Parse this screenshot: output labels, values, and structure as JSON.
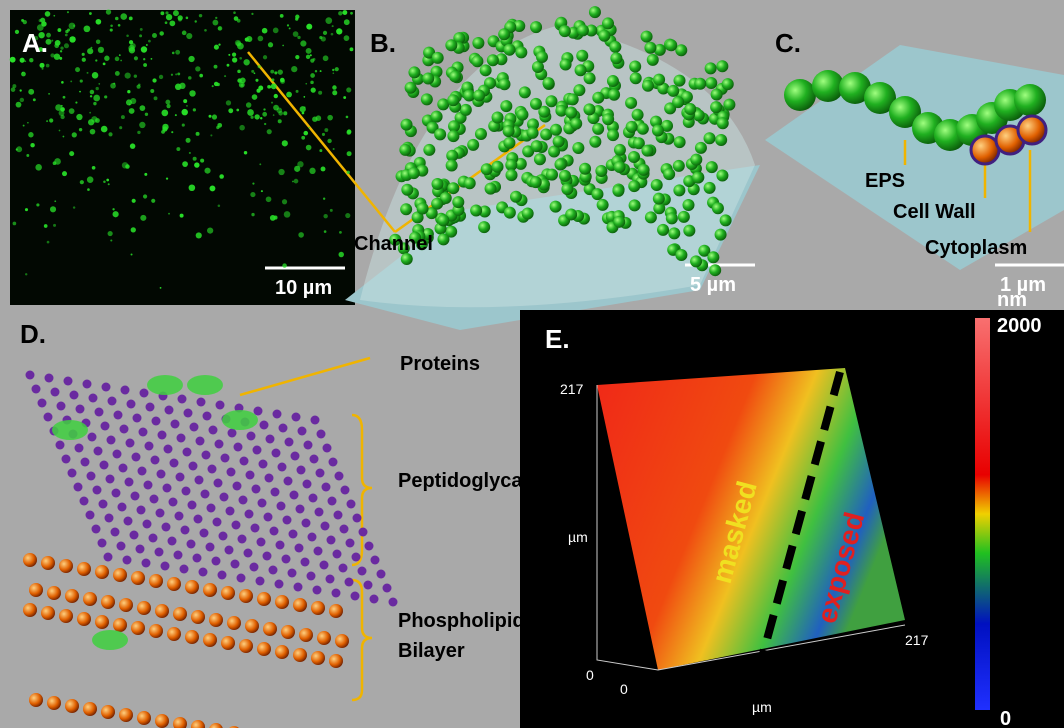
{
  "panels": {
    "a": {
      "label": "A.",
      "scale_bar": "10 µm"
    },
    "b": {
      "label": "B.",
      "channel": "Channel",
      "scale_bar": "5 µm"
    },
    "c": {
      "label": "C.",
      "eps": "EPS",
      "cell_wall": "Cell Wall",
      "cytoplasm": "Cytoplasm",
      "scale_bar": "1 µm"
    },
    "d": {
      "label": "D.",
      "proteins": "Proteins",
      "peptidoglycan": "Peptidoglycan",
      "bilayer": [
        "Phospholipid",
        "Bilayer"
      ]
    },
    "e": {
      "label": "E.",
      "colorbar_unit": "nm",
      "colorbar_max": 2000,
      "colorbar_min": 0,
      "y_max": 217,
      "y_min": 0,
      "y_unit": "µm",
      "x_max": 217,
      "x_min": 0,
      "x_unit": "µm",
      "masked": "masked",
      "exposed": "exposed"
    }
  }
}
